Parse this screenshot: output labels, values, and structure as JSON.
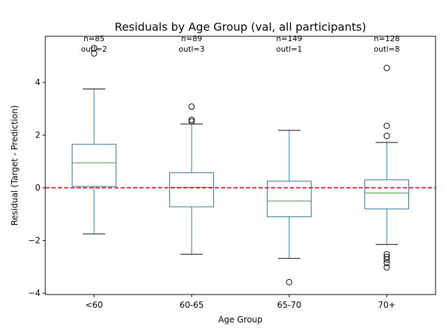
{
  "chart_data": {
    "type": "box",
    "title": "Residuals by Age Group (val, all participants)",
    "xlabel": "Age Group",
    "ylabel": "Residual (Target - Prediction)",
    "ylim": [
      -4.05,
      5.75
    ],
    "yticks": [
      -4,
      -2,
      0,
      2,
      4
    ],
    "reference_line": {
      "y": 0,
      "color": "#ff0000",
      "style": "dashed"
    },
    "colors": {
      "box": "#1f77b4",
      "median": "#2ca02c",
      "whisker_cap": "#000000",
      "outlier": "#000000"
    },
    "categories": [
      "<60",
      "60-65",
      "65-70",
      "70+"
    ],
    "boxes": [
      {
        "category": "<60",
        "whisker_low": -1.75,
        "q1": 0.05,
        "median": 0.95,
        "q3": 1.65,
        "whisker_high": 3.75,
        "outliers": [
          5.1,
          5.3
        ],
        "annotation": [
          "n=85",
          "outl=2"
        ]
      },
      {
        "category": "60-65",
        "whisker_low": -2.52,
        "q1": -0.72,
        "median": 0.02,
        "q3": 0.57,
        "whisker_high": 2.42,
        "outliers": [
          2.52,
          2.58,
          3.08
        ],
        "annotation": [
          "n=89",
          "outl=3"
        ]
      },
      {
        "category": "65-70",
        "whisker_low": -2.68,
        "q1": -1.1,
        "median": -0.5,
        "q3": 0.25,
        "whisker_high": 2.18,
        "outliers": [
          -3.58
        ],
        "annotation": [
          "n=149",
          "outl=1"
        ]
      },
      {
        "category": "70+",
        "whisker_low": -2.15,
        "q1": -0.8,
        "median": -0.2,
        "q3": 0.3,
        "whisker_high": 1.72,
        "outliers": [
          4.55,
          2.35,
          1.97,
          -2.52,
          -2.62,
          -2.72,
          -2.85,
          -3.02
        ],
        "annotation": [
          "n=128",
          "outl=8"
        ]
      }
    ]
  }
}
